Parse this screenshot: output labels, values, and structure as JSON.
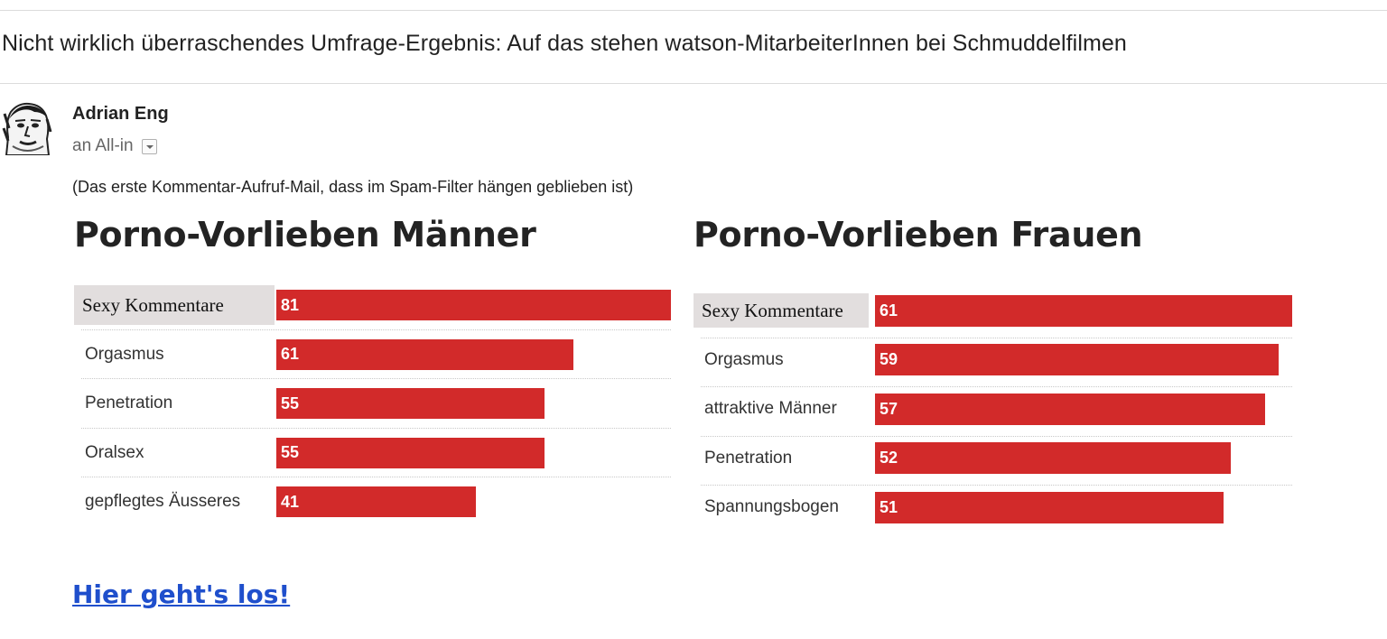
{
  "email": {
    "subject": "Nicht wirklich überraschendes Umfrage-Ergebnis: Auf das stehen watson-MitarbeiterInnen bei Schmuddelfilmen",
    "sender": "Adrian Eng",
    "recipient": "an All-in",
    "note": "(Das erste Kommentar-Aufruf-Mail, dass im Spam-Filter hängen geblieben ist)",
    "link_text": "Hier geht's los!"
  },
  "colors": {
    "bar": "#d22a2a",
    "link": "#1f4fcc",
    "label_highlight": "#e2dede"
  },
  "icons": {
    "avatar": "person-sketch-avatar",
    "recipient_toggle": "chevron-down-icon"
  },
  "chart_data": [
    {
      "type": "bar",
      "orientation": "horizontal",
      "title": "Porno-Vorlieben Männer",
      "categories": [
        "Sexy Kommentare",
        "Orgasmus",
        "Penetration",
        "Oralsex",
        "gepflegtes Äusseres"
      ],
      "values": [
        81,
        61,
        55,
        55,
        41
      ],
      "highlighted_category": "Sexy Kommentare",
      "data_labels": true,
      "grid": false
    },
    {
      "type": "bar",
      "orientation": "horizontal",
      "title": "Porno-Vorlieben Frauen",
      "categories": [
        "Sexy Kommentare",
        "Orgasmus",
        "attraktive Männer",
        "Penetration",
        "Spannungsbogen"
      ],
      "values": [
        61,
        59,
        57,
        52,
        51
      ],
      "highlighted_category": "Sexy Kommentare",
      "data_labels": true,
      "grid": false
    }
  ]
}
